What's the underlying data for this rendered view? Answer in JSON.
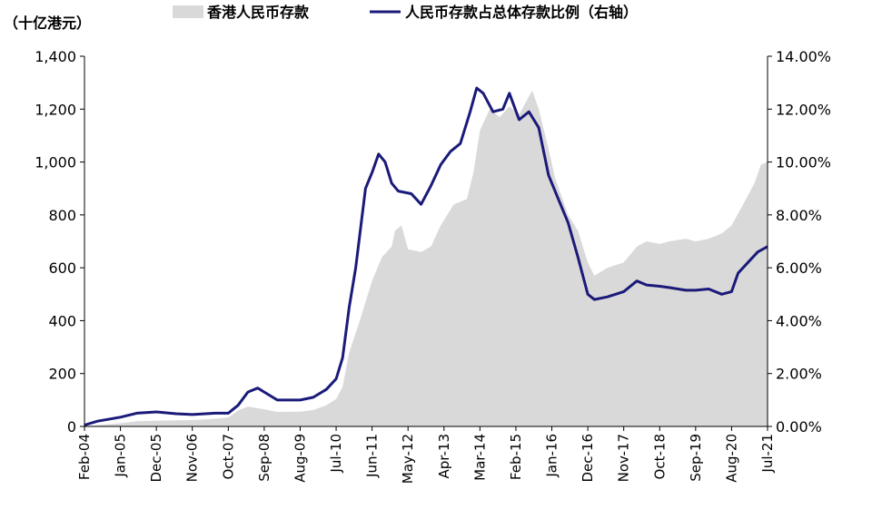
{
  "chart_data": {
    "type": "area+line",
    "left_axis_unit": "（十亿港元）",
    "legend": [
      {
        "label": "香港人民币存款",
        "kind": "area",
        "color": "#d9d9d9"
      },
      {
        "label": "人民币存款占总体存款比例（右轴）",
        "kind": "line",
        "color": "#1a1a7a"
      }
    ],
    "y_left": {
      "min": 0,
      "max": 1400,
      "ticks": [
        "0",
        "200",
        "400",
        "600",
        "800",
        "1,000",
        "1,200",
        "1,400"
      ]
    },
    "y_right": {
      "min": 0,
      "max": 14,
      "ticks": [
        "0.00%",
        "2.00%",
        "4.00%",
        "6.00%",
        "8.00%",
        "10.00%",
        "12.00%",
        "14.00%"
      ]
    },
    "x_tick_labels": [
      "Feb-04",
      "Jan-05",
      "Dec-05",
      "Nov-06",
      "Oct-07",
      "Sep-08",
      "Aug-09",
      "Jul-10",
      "Jun-11",
      "May-12",
      "Apr-13",
      "Mar-14",
      "Feb-15",
      "Jan-16",
      "Dec-16",
      "Nov-17",
      "Oct-18",
      "Sep-19",
      "Aug-20",
      "Jul-21"
    ],
    "x_range": [
      "2004-02",
      "2021-07"
    ],
    "series": [
      {
        "name": "香港人民币存款",
        "axis": "left",
        "points": [
          [
            "2004-02",
            1
          ],
          [
            "2004-06",
            5
          ],
          [
            "2005-01",
            12
          ],
          [
            "2005-06",
            20
          ],
          [
            "2005-12",
            22
          ],
          [
            "2006-06",
            23
          ],
          [
            "2006-11",
            24
          ],
          [
            "2007-06",
            29
          ],
          [
            "2007-10",
            34
          ],
          [
            "2008-01",
            60
          ],
          [
            "2008-04",
            75
          ],
          [
            "2008-09",
            65
          ],
          [
            "2009-01",
            55
          ],
          [
            "2009-08",
            56
          ],
          [
            "2009-12",
            62
          ],
          [
            "2010-04",
            80
          ],
          [
            "2010-07",
            104
          ],
          [
            "2010-09",
            150
          ],
          [
            "2010-11",
            280
          ],
          [
            "2011-02",
            390
          ],
          [
            "2011-06",
            550
          ],
          [
            "2011-09",
            640
          ],
          [
            "2011-12",
            680
          ],
          [
            "2012-01",
            740
          ],
          [
            "2012-03",
            760
          ],
          [
            "2012-05",
            670
          ],
          [
            "2012-09",
            660
          ],
          [
            "2012-12",
            680
          ],
          [
            "2013-03",
            760
          ],
          [
            "2013-07",
            840
          ],
          [
            "2013-11",
            860
          ],
          [
            "2014-01",
            960
          ],
          [
            "2014-03",
            1120
          ],
          [
            "2014-06",
            1200
          ],
          [
            "2014-09",
            1170
          ],
          [
            "2014-12",
            1210
          ],
          [
            "2015-03",
            1180
          ],
          [
            "2015-07",
            1270
          ],
          [
            "2015-09",
            1200
          ],
          [
            "2015-12",
            1050
          ],
          [
            "2016-02",
            940
          ],
          [
            "2016-06",
            800
          ],
          [
            "2016-09",
            740
          ],
          [
            "2016-12",
            620
          ],
          [
            "2017-02",
            570
          ],
          [
            "2017-06",
            600
          ],
          [
            "2017-11",
            620
          ],
          [
            "2018-03",
            680
          ],
          [
            "2018-06",
            700
          ],
          [
            "2018-10",
            690
          ],
          [
            "2019-01",
            700
          ],
          [
            "2019-06",
            710
          ],
          [
            "2019-09",
            700
          ],
          [
            "2020-01",
            710
          ],
          [
            "2020-05",
            730
          ],
          [
            "2020-08",
            760
          ],
          [
            "2020-12",
            850
          ],
          [
            "2021-03",
            920
          ],
          [
            "2021-05",
            990
          ],
          [
            "2021-07",
            1000
          ]
        ]
      },
      {
        "name": "人民币存款占总体存款比例（右轴）",
        "axis": "right",
        "points": [
          [
            "2004-02",
            0.05
          ],
          [
            "2004-06",
            0.2
          ],
          [
            "2005-01",
            0.35
          ],
          [
            "2005-06",
            0.5
          ],
          [
            "2005-12",
            0.55
          ],
          [
            "2006-06",
            0.48
          ],
          [
            "2006-11",
            0.45
          ],
          [
            "2007-06",
            0.5
          ],
          [
            "2007-10",
            0.5
          ],
          [
            "2008-01",
            0.8
          ],
          [
            "2008-04",
            1.3
          ],
          [
            "2008-07",
            1.45
          ],
          [
            "2008-09",
            1.3
          ],
          [
            "2009-01",
            1.0
          ],
          [
            "2009-08",
            1.0
          ],
          [
            "2009-12",
            1.1
          ],
          [
            "2010-04",
            1.4
          ],
          [
            "2010-07",
            1.8
          ],
          [
            "2010-09",
            2.6
          ],
          [
            "2010-11",
            4.5
          ],
          [
            "2011-01",
            6.0
          ],
          [
            "2011-04",
            9.0
          ],
          [
            "2011-06",
            9.6
          ],
          [
            "2011-08",
            10.3
          ],
          [
            "2011-10",
            10.0
          ],
          [
            "2011-12",
            9.2
          ],
          [
            "2012-02",
            8.9
          ],
          [
            "2012-06",
            8.8
          ],
          [
            "2012-09",
            8.4
          ],
          [
            "2012-12",
            9.1
          ],
          [
            "2013-03",
            9.9
          ],
          [
            "2013-06",
            10.4
          ],
          [
            "2013-09",
            10.7
          ],
          [
            "2013-12",
            11.9
          ],
          [
            "2014-02",
            12.8
          ],
          [
            "2014-04",
            12.6
          ],
          [
            "2014-07",
            11.9
          ],
          [
            "2014-10",
            12.0
          ],
          [
            "2014-12",
            12.6
          ],
          [
            "2015-03",
            11.6
          ],
          [
            "2015-06",
            11.9
          ],
          [
            "2015-09",
            11.3
          ],
          [
            "2015-12",
            9.5
          ],
          [
            "2016-03",
            8.6
          ],
          [
            "2016-06",
            7.7
          ],
          [
            "2016-09",
            6.4
          ],
          [
            "2016-12",
            5.0
          ],
          [
            "2017-02",
            4.8
          ],
          [
            "2017-06",
            4.9
          ],
          [
            "2017-11",
            5.1
          ],
          [
            "2018-03",
            5.5
          ],
          [
            "2018-06",
            5.35
          ],
          [
            "2018-10",
            5.3
          ],
          [
            "2019-01",
            5.25
          ],
          [
            "2019-06",
            5.15
          ],
          [
            "2019-09",
            5.15
          ],
          [
            "2020-01",
            5.2
          ],
          [
            "2020-05",
            5.0
          ],
          [
            "2020-08",
            5.1
          ],
          [
            "2020-10",
            5.8
          ],
          [
            "2021-01",
            6.2
          ],
          [
            "2021-04",
            6.6
          ],
          [
            "2021-07",
            6.8
          ]
        ]
      }
    ]
  }
}
